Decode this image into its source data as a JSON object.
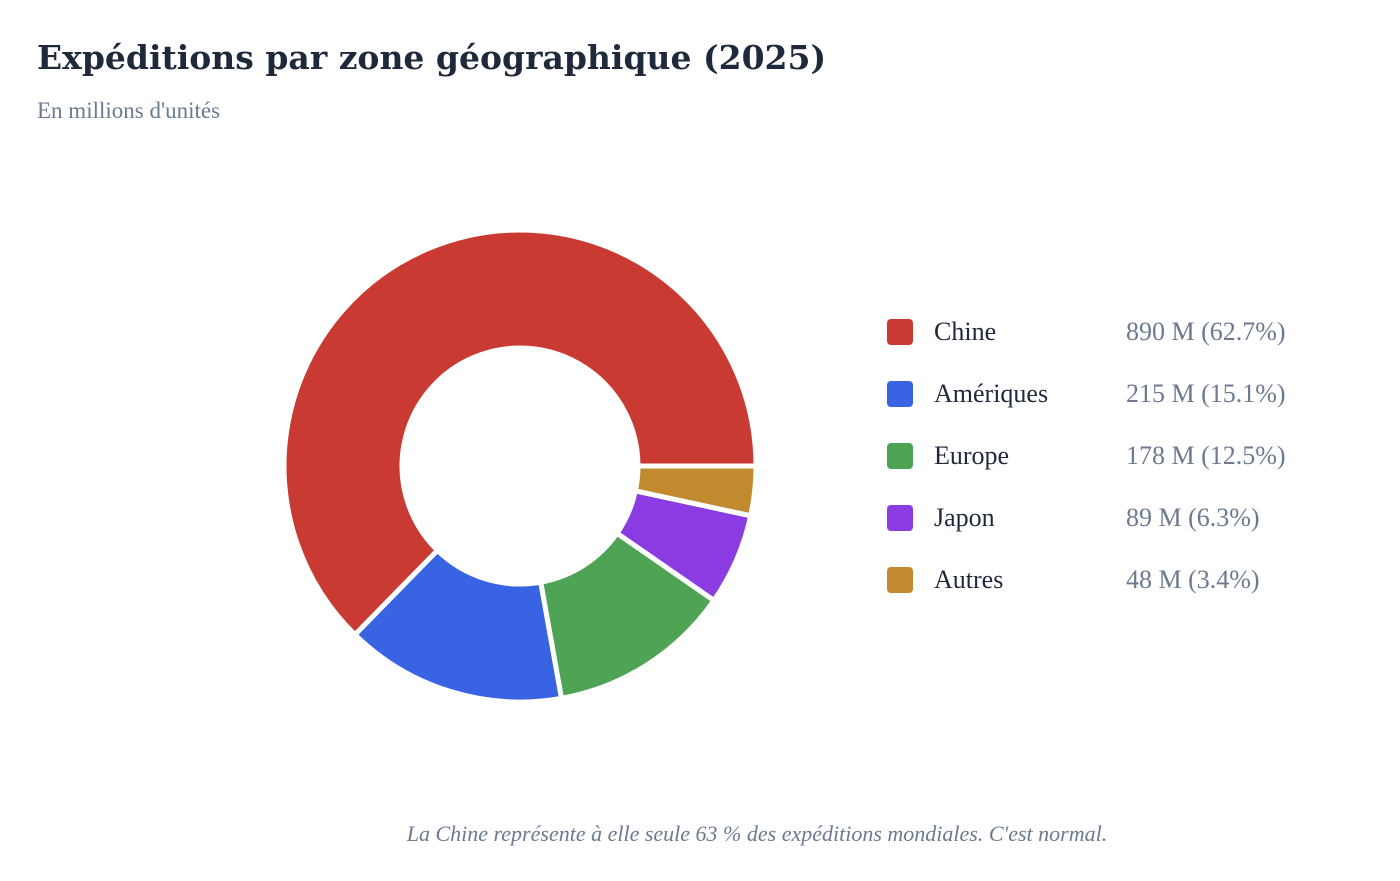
{
  "header": {
    "title": "Expéditions par zone géographique (2025)",
    "subtitle": "En millions d'unités"
  },
  "chart_data": {
    "type": "pie",
    "variant": "donut",
    "title": "Expéditions par zone géographique (2025)",
    "subtitle": "En millions d'unités",
    "legend_position": "right",
    "slices": [
      {
        "name": "Chine",
        "value": 890,
        "value_label": "890 M (62.7%)",
        "color": "#c93a33"
      },
      {
        "name": "Amériques",
        "value": 215,
        "value_label": "215 M (15.1%)",
        "color": "#3864e3"
      },
      {
        "name": "Europe",
        "value": 178,
        "value_label": "178 M (12.5%)",
        "color": "#4ea354"
      },
      {
        "name": "Japon",
        "value": 89,
        "value_label": "89 M (6.3%)",
        "color": "#8a3be2"
      },
      {
        "name": "Autres",
        "value": 48,
        "value_label": "48 M (3.4%)",
        "color": "#c18a2f"
      }
    ]
  },
  "footnote": "La Chine représente à elle seule 63 % des expéditions mondiales. C'est normal."
}
